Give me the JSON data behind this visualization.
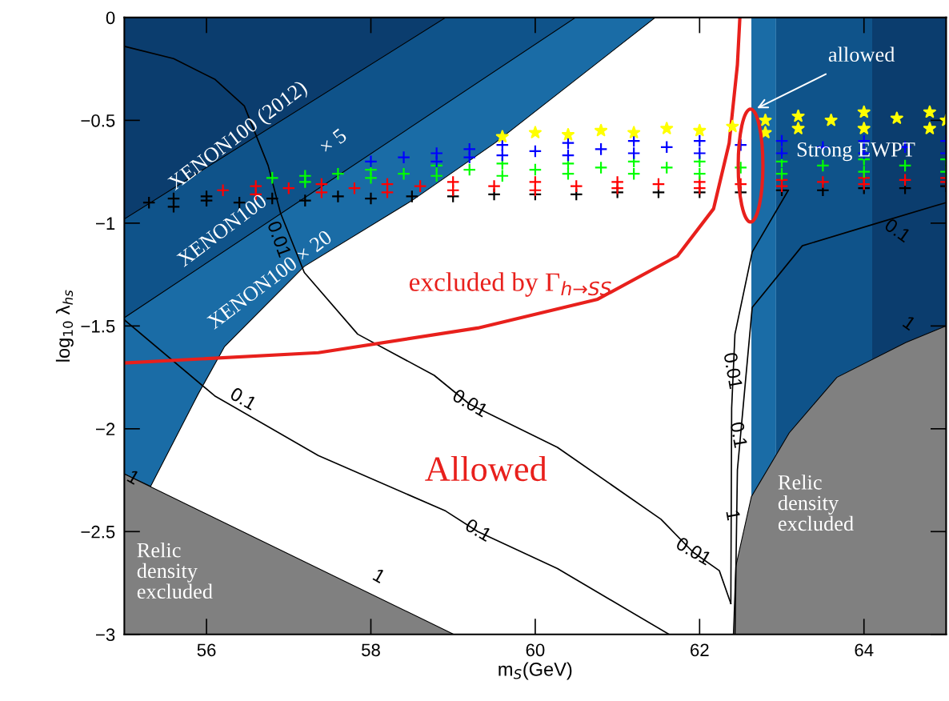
{
  "chart_data": {
    "type": "area",
    "xlabel": "m$_{S}$(GeV)",
    "ylabel": "log$_{10}$ λ$_{hs}$",
    "xlim": [
      55,
      65
    ],
    "ylim": [
      -3,
      0
    ],
    "xticks": [
      56,
      58,
      60,
      62,
      64
    ],
    "yticks": [
      {
        "value": -3,
        "label": "−3"
      },
      {
        "value": -2.5,
        "label": "−2.5"
      },
      {
        "value": -2,
        "label": "−2"
      },
      {
        "value": -1.5,
        "label": "−1.5"
      },
      {
        "value": -1,
        "label": "−1"
      },
      {
        "value": -0.5,
        "label": "−0.5"
      },
      {
        "value": 0,
        "label": "0"
      }
    ],
    "grid": false,
    "bands": [
      {
        "axis": "x",
        "from": 62.63,
        "to": 62.93,
        "color": "#1a6ca6"
      },
      {
        "axis": "x",
        "from": 62.93,
        "to": 64.1,
        "color": "#0f538a"
      },
      {
        "axis": "x",
        "from": 64.1,
        "to": 65,
        "color": "#0b3d6e"
      }
    ],
    "series": [
      {
        "color": "#1a6ca6",
        "x": [
          55,
          55,
          55.32,
          55.9,
          56.22,
          57.19,
          58.5,
          59.51,
          61.46
        ],
        "values": [
          0,
          -2.22,
          -2.28,
          -1.83,
          -1.6,
          -1.21,
          -0.89,
          -0.61,
          0
        ]
      },
      {
        "color": "#0f538a",
        "x": [
          55,
          55,
          60.49
        ],
        "values": [
          0,
          -1.46,
          0
        ]
      },
      {
        "color": "#0b3d6e",
        "x": [
          55,
          55,
          58.91
        ],
        "values": [
          0,
          -0.98,
          0
        ]
      },
      {
        "color": "#808080",
        "x": [
          55,
          55,
          59.01
        ],
        "values": [
          -3,
          -2.22,
          -3
        ]
      },
      {
        "color": "#808080",
        "x": [
          62.41,
          62.44,
          62.63,
          63.09,
          63.67,
          64.51,
          65,
          65
        ],
        "values": [
          -3,
          -2.67,
          -2.33,
          -2.02,
          -1.75,
          -1.58,
          -1.5,
          -3
        ]
      },
      {
        "type": "line",
        "color": "#000000",
        "x": [
          55,
          55.6,
          56.1,
          56.46,
          56.75,
          56.9,
          57.19,
          57.84,
          58.77,
          59.2,
          60.27,
          61.53,
          61.92,
          62.24,
          62.38
        ],
        "values": [
          -0.14,
          -0.2,
          -0.3,
          -0.43,
          -0.72,
          -0.95,
          -1.24,
          -1.54,
          -1.74,
          -1.88,
          -2.09,
          -2.44,
          -2.6,
          -2.69,
          -2.85
        ]
      },
      {
        "type": "line",
        "color": "#000000",
        "x": [
          55,
          56.1,
          57.36,
          58.91,
          59.3,
          60.27,
          61.63
        ],
        "values": [
          -1.47,
          -1.84,
          -2.13,
          -2.4,
          -2.5,
          -2.68,
          -3
        ]
      },
      {
        "type": "line",
        "color": "#000000",
        "x": [
          62.38,
          62.39,
          62.43,
          62.64,
          63.08
        ],
        "values": [
          -2.85,
          -1.9,
          -1.54,
          -1.14,
          -0.84
        ]
      },
      {
        "type": "line",
        "color": "#000000",
        "x": [
          62.43,
          62.46,
          62.64,
          63.25,
          64.16,
          64.83,
          65
        ],
        "values": [
          -3,
          -2.2,
          -1.41,
          -1.11,
          -1.0,
          -0.92,
          -0.9
        ]
      },
      {
        "type": "scatter",
        "marker": "cross",
        "color": "#000000",
        "x": [
          55.3,
          55.6,
          55.6,
          56.0,
          56.0,
          56.4,
          56.8,
          57.2,
          57.6,
          58.0,
          58.5,
          59.0,
          59.5,
          60.0,
          60.5,
          61.0,
          61.5,
          62.0,
          62.5,
          63.0,
          63.5,
          64.0,
          64.5,
          65.0
        ],
        "values": [
          -0.9,
          -0.88,
          -0.92,
          -0.89,
          -0.87,
          -0.9,
          -0.88,
          -0.89,
          -0.87,
          -0.88,
          -0.87,
          -0.87,
          -0.86,
          -0.86,
          -0.86,
          -0.85,
          -0.85,
          -0.85,
          -0.85,
          -0.84,
          -0.84,
          -0.83,
          -0.83,
          -0.82
        ]
      },
      {
        "type": "scatter",
        "marker": "cross",
        "color": "#ff0000",
        "x": [
          56.2,
          56.6,
          56.6,
          57.0,
          57.4,
          57.4,
          57.8,
          58.2,
          58.2,
          58.6,
          59.0,
          59.0,
          59.5,
          60.0,
          60.0,
          60.5,
          61.0,
          61.0,
          61.5,
          62.0,
          62.0,
          62.5,
          63.0,
          63.0,
          63.5,
          64.0,
          64.0,
          64.5,
          65.0,
          65.0
        ],
        "values": [
          -0.84,
          -0.82,
          -0.86,
          -0.83,
          -0.81,
          -0.85,
          -0.83,
          -0.81,
          -0.85,
          -0.82,
          -0.8,
          -0.84,
          -0.82,
          -0.8,
          -0.84,
          -0.82,
          -0.8,
          -0.83,
          -0.81,
          -0.8,
          -0.83,
          -0.81,
          -0.79,
          -0.82,
          -0.8,
          -0.78,
          -0.81,
          -0.79,
          -0.78,
          -0.8
        ]
      },
      {
        "type": "scatter",
        "marker": "cross",
        "color": "#00ff00",
        "x": [
          56.8,
          57.2,
          57.2,
          57.6,
          58.0,
          58.0,
          58.4,
          58.8,
          58.8,
          59.2,
          59.6,
          59.6,
          60.0,
          60.4,
          60.4,
          60.8,
          61.2,
          61.2,
          61.6,
          62.0,
          62.0,
          62.5,
          63.0,
          63.0,
          63.5,
          64.0,
          64.0,
          64.5,
          65.0,
          65.0
        ],
        "values": [
          -0.78,
          -0.77,
          -0.8,
          -0.76,
          -0.74,
          -0.78,
          -0.76,
          -0.72,
          -0.77,
          -0.74,
          -0.71,
          -0.77,
          -0.74,
          -0.71,
          -0.76,
          -0.73,
          -0.7,
          -0.76,
          -0.73,
          -0.7,
          -0.76,
          -0.73,
          -0.7,
          -0.76,
          -0.72,
          -0.69,
          -0.75,
          -0.72,
          -0.69,
          -0.75
        ]
      },
      {
        "type": "scatter",
        "marker": "cross",
        "color": "#0000ff",
        "x": [
          58.0,
          58.4,
          58.8,
          58.8,
          59.2,
          59.2,
          59.6,
          59.6,
          60.0,
          60.4,
          60.4,
          60.8,
          61.2,
          61.2,
          61.6,
          62.0,
          62.0,
          62.5,
          63.0,
          63.0,
          63.5,
          64.0,
          64.0,
          64.5,
          65.0,
          65.0
        ],
        "values": [
          -0.7,
          -0.68,
          -0.66,
          -0.7,
          -0.64,
          -0.68,
          -0.62,
          -0.67,
          -0.65,
          -0.61,
          -0.67,
          -0.64,
          -0.6,
          -0.66,
          -0.63,
          -0.6,
          -0.66,
          -0.62,
          -0.6,
          -0.66,
          -0.63,
          -0.6,
          -0.66,
          -0.63,
          -0.6,
          -0.66
        ]
      },
      {
        "type": "scatter",
        "marker": "star",
        "color": "#ffff00",
        "x": [
          59.6,
          60.0,
          60.4,
          60.8,
          61.2,
          61.6,
          62.0,
          62.4,
          62.8,
          62.8,
          63.2,
          63.2,
          63.6,
          64.0,
          64.0,
          64.4,
          64.8,
          64.8,
          65.0
        ],
        "values": [
          -0.58,
          -0.56,
          -0.57,
          -0.55,
          -0.56,
          -0.54,
          -0.55,
          -0.53,
          -0.5,
          -0.56,
          -0.48,
          -0.54,
          -0.5,
          -0.46,
          -0.54,
          -0.49,
          -0.46,
          -0.54,
          -0.5
        ]
      },
      {
        "type": "line",
        "color": "#e8201c",
        "x": [
          55,
          57.36,
          59.3,
          60.76,
          61.73,
          62.17,
          62.36,
          62.46,
          62.49
        ],
        "values": [
          -1.68,
          -1.63,
          -1.51,
          -1.37,
          -1.16,
          -0.93,
          -0.61,
          -0.23,
          0
        ]
      }
    ],
    "annotations": [
      "XENON100 (2012)",
      "XENON100",
      "× 5",
      "XENON100 × 20",
      "Strong EWPT",
      "allowed",
      "excluded by Γ$_{h→SS}$",
      "Allowed",
      "Relic\ndensity\nexcluded",
      "Relic\ndensity\nexcluded",
      "0.01",
      "0.1",
      "0.01",
      "0.1",
      "0.01",
      "1",
      "1",
      "0.01",
      "0.1",
      "1",
      "0.1",
      "1"
    ]
  }
}
